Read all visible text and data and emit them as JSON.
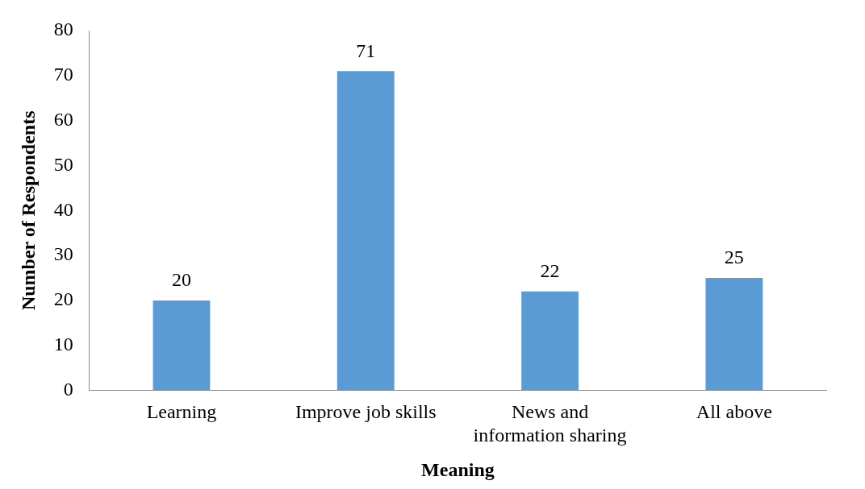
{
  "chart_data": {
    "type": "bar",
    "xlabel": "Meaning",
    "ylabel": "Number of Respondents",
    "categories": [
      "Learning",
      "Improve job skills",
      "News and information sharing",
      "All above"
    ],
    "values": [
      20,
      71,
      22,
      25
    ],
    "color": "#5b9bd5",
    "ylim": [
      0,
      80
    ],
    "yticks": [
      0,
      10,
      20,
      30,
      40,
      50,
      60,
      70,
      80
    ],
    "grid": false,
    "legend": false,
    "data_labels": true
  }
}
